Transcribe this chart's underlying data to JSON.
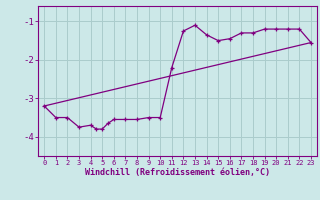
{
  "xlabel": "Windchill (Refroidissement éolien,°C)",
  "background_color": "#cce8e8",
  "line_color": "#800080",
  "grid_color": "#aacccc",
  "axis_color": "#800080",
  "xlim": [
    -0.5,
    23.5
  ],
  "ylim": [
    -4.5,
    -0.6
  ],
  "yticks": [
    -4,
    -3,
    -2,
    -1
  ],
  "xticks": [
    0,
    1,
    2,
    3,
    4,
    5,
    6,
    7,
    8,
    9,
    10,
    11,
    12,
    13,
    14,
    15,
    16,
    17,
    18,
    19,
    20,
    21,
    22,
    23
  ],
  "curve_x": [
    0,
    1,
    2,
    3,
    4,
    4.5,
    5,
    5.5,
    6,
    7,
    8,
    9,
    10,
    11,
    12,
    13,
    14,
    15,
    16,
    17,
    18,
    19,
    20,
    21,
    22,
    23
  ],
  "curve_y": [
    -3.2,
    -3.5,
    -3.5,
    -3.75,
    -3.7,
    -3.8,
    -3.8,
    -3.65,
    -3.55,
    -3.55,
    -3.55,
    -3.5,
    -3.5,
    -2.2,
    -1.25,
    -1.1,
    -1.35,
    -1.5,
    -1.45,
    -1.3,
    -1.3,
    -1.2,
    -1.2,
    -1.2,
    -1.2,
    -1.55
  ],
  "line_x": [
    0,
    23
  ],
  "line_y": [
    -3.2,
    -1.55
  ]
}
